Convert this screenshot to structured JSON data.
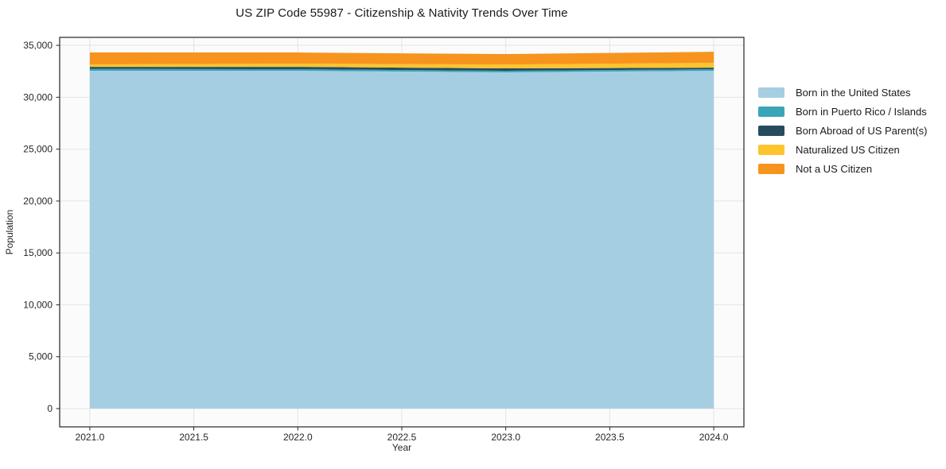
{
  "chart_data": {
    "type": "area",
    "stacked": true,
    "title": "US ZIP Code 55987 - Citizenship & Nativity Trends Over Time",
    "xlabel": "Year",
    "ylabel": "Population",
    "x": [
      2021,
      2022,
      2023,
      2024
    ],
    "series": [
      {
        "name": "Born in the United States",
        "color": "#a5cee3",
        "values": [
          32550,
          32550,
          32400,
          32550
        ]
      },
      {
        "name": "Born in Puerto Rico / Islands",
        "color": "#3aa5b9",
        "values": [
          190,
          150,
          150,
          150
        ]
      },
      {
        "name": "Born Abroad of US Parent(s)",
        "color": "#254b5e",
        "values": [
          190,
          230,
          230,
          150
        ]
      },
      {
        "name": "Naturalized US Citizen",
        "color": "#fdc42e",
        "values": [
          230,
          310,
          380,
          460
        ]
      },
      {
        "name": "Not a US Citizen",
        "color": "#f7941e",
        "values": [
          1150,
          1070,
          1000,
          1070
        ]
      }
    ],
    "xlim": [
      2020.855,
      2024.145
    ],
    "ylim": [
      -1760,
      35770
    ],
    "xticks": [
      2021.0,
      2021.5,
      2022.0,
      2022.5,
      2023.0,
      2023.5,
      2024.0
    ],
    "yticks": [
      0,
      5000,
      10000,
      15000,
      20000,
      25000,
      30000,
      35000
    ],
    "grid": true,
    "legend_position": "upper right outside",
    "plot_background": "#fbfbfb",
    "grid_color": "#e3e3e3",
    "spine_color": "#262626"
  }
}
